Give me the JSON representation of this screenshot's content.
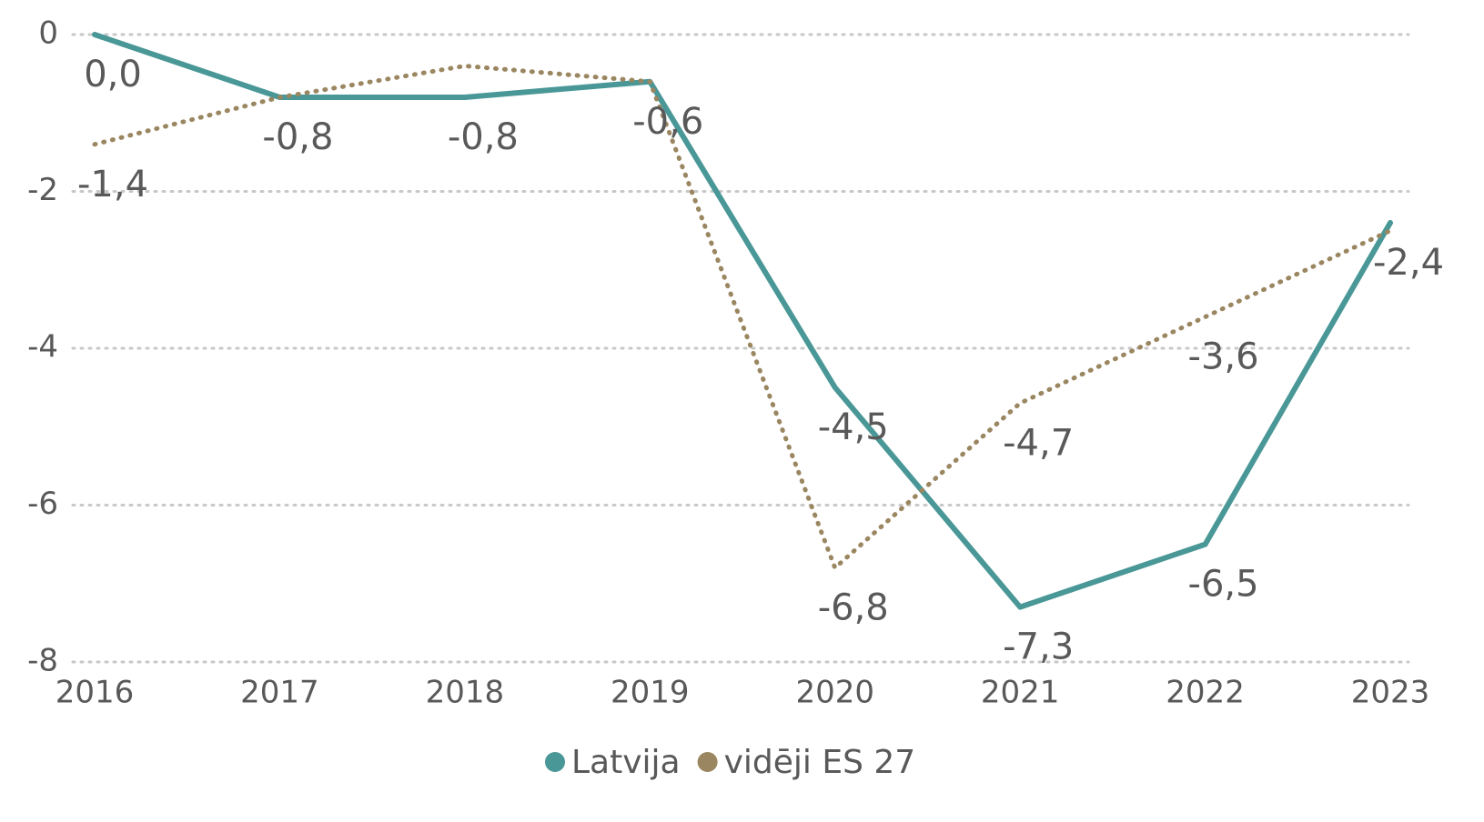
{
  "chart_data": {
    "type": "line",
    "categories": [
      "2016",
      "2017",
      "2018",
      "2019",
      "2020",
      "2021",
      "2022",
      "2023"
    ],
    "series": [
      {
        "name": "Latvija",
        "color": "#4a9797",
        "style": "solid",
        "values": [
          0.0,
          -0.8,
          -0.8,
          -0.6,
          -4.5,
          -7.3,
          -6.5,
          -2.4
        ],
        "value_labels": [
          "0,0",
          "-0,8",
          "-0,8",
          "-0,6",
          "-4,5",
          "-7,3",
          "-6,5",
          "-2,4"
        ]
      },
      {
        "name": "vidēji ES 27",
        "color": "#9a8660",
        "style": "dotted",
        "values": [
          -1.4,
          -0.8,
          -0.4,
          -0.6,
          -6.8,
          -4.7,
          -3.6,
          -2.5
        ],
        "value_labels": [
          "-1,4",
          null,
          null,
          null,
          "-6,8",
          "-4,7",
          "-3,6",
          null
        ]
      }
    ],
    "ylim": [
      -8,
      0
    ],
    "yticks": [
      0,
      -2,
      -4,
      -6,
      -8
    ],
    "grid": true,
    "legend": "bottom"
  }
}
